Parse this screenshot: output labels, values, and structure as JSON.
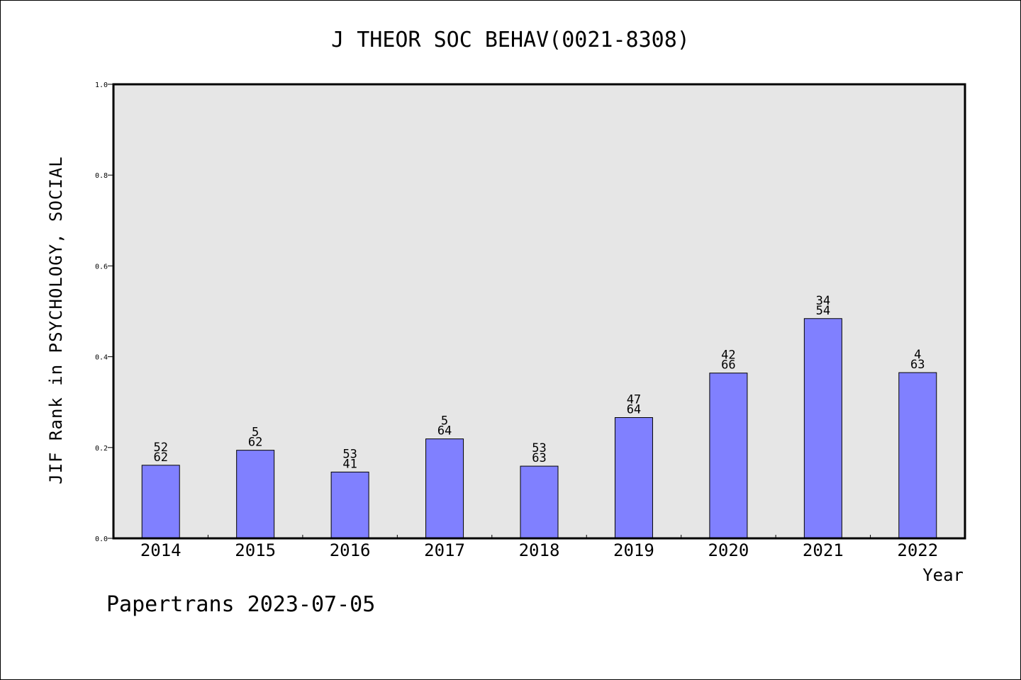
{
  "chart_data": {
    "type": "bar",
    "title": "J THEOR SOC BEHAV(0021-8308)",
    "xlabel": "Year",
    "ylabel": "JIF Rank in PSYCHOLOGY, SOCIAL",
    "ylim": [
      0,
      1.0
    ],
    "yticks": [
      "0.0",
      "0.2",
      "0.4",
      "0.6",
      "0.8",
      "1.0"
    ],
    "grid": false,
    "categories": [
      "2014",
      "2015",
      "2016",
      "2017",
      "2018",
      "2019",
      "2020",
      "2021",
      "2022"
    ],
    "values": [
      0.161,
      0.194,
      0.146,
      0.219,
      0.159,
      0.266,
      0.364,
      0.484,
      0.365
    ],
    "labels": [
      [
        "52",
        "62"
      ],
      [
        "5",
        "62"
      ],
      [
        "53",
        "41"
      ],
      [
        "5",
        "64"
      ],
      [
        "53",
        "63"
      ],
      [
        "47",
        "64"
      ],
      [
        "42",
        "66"
      ],
      [
        "34",
        "54"
      ],
      [
        "4",
        "63"
      ]
    ],
    "colors": {
      "bar": "#8080ff",
      "plot_bg": "#e6e6e6",
      "axis": "#000000"
    }
  },
  "footer": "Papertrans 2023-07-05"
}
